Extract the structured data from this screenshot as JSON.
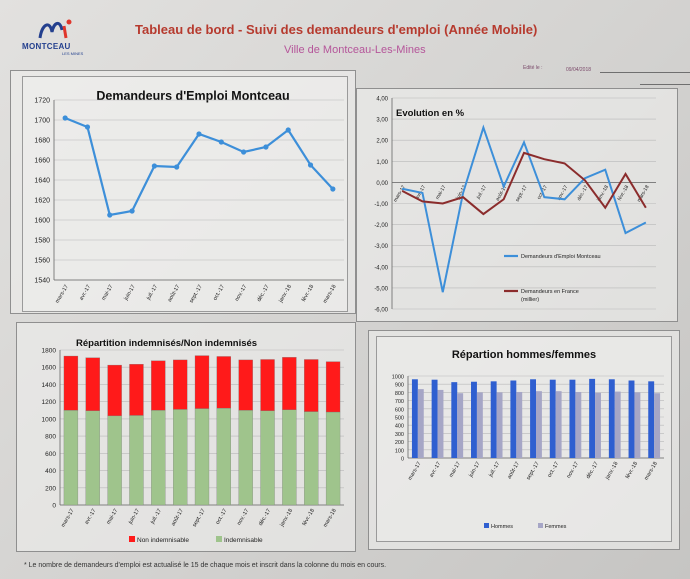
{
  "header": {
    "logo_text": "MONTCEAU",
    "logo_sub": "LES MINES",
    "title": "Tableau de bord - Suivi des demandeurs d'emploi (Année Mobile)",
    "subtitle": "Ville de Montceau-Les-Mines",
    "edition_label": "Edité le :",
    "date": "09/04/2018"
  },
  "footnote": "* Le nombre de demandeurs d'emploi est actualisé le 15 de chaque mois et inscrit dans la colonne du mois en cours.",
  "colors": {
    "line_blue": "#3d8fd9",
    "line_dark_red": "#8b2c2c",
    "bar_red": "#ff1a1a",
    "bar_green": "#9fc48c",
    "bar_blue": "#2f5fd0",
    "bar_grey": "#a6a6c6",
    "title_red": "#b63a2e",
    "subtitle_pink": "#b5569a"
  },
  "chart_data": [
    {
      "type": "line",
      "title": "Demandeurs d'Emploi Montceau",
      "categories": [
        "mars-17",
        "avr.-17",
        "mai-17",
        "juin-17",
        "juil.-17",
        "août-17",
        "sept.-17",
        "oct.-17",
        "nov.-17",
        "déc.-17",
        "janv.-18",
        "févr.-18",
        "mars-18"
      ],
      "values": [
        1702,
        1693,
        1605,
        1609,
        1654,
        1653,
        1686,
        1678,
        1668,
        1673,
        1690,
        1655,
        1631
      ],
      "ylim": [
        1540,
        1720
      ],
      "yticks": [
        "1540",
        "1560",
        "1580",
        "1600",
        "1620",
        "1640",
        "1660",
        "1680",
        "1700",
        "1720"
      ],
      "grid": true
    },
    {
      "type": "line",
      "title": "Evolution en %",
      "categories": [
        "mars-17",
        "avr.-17",
        "mai-17",
        "juin-17",
        "juil.-17",
        "août-17",
        "sept.-17",
        "oct.-17",
        "nov.-17",
        "déc.-17",
        "janv.-18",
        "févr.-18",
        "mars-18"
      ],
      "series": [
        {
          "name": "Demandeurs d'Emploi Montceau",
          "values": [
            -0.3,
            -0.5,
            -5.2,
            -0.5,
            2.6,
            -0.2,
            1.9,
            -0.7,
            -0.8,
            0.2,
            0.6,
            -2.4,
            -1.9
          ]
        },
        {
          "name": "Demandeurs en France (millier)",
          "values": [
            -0.4,
            -0.9,
            -1.0,
            -0.7,
            -1.5,
            -0.8,
            1.4,
            1.1,
            0.9,
            0.1,
            -1.2,
            0.4,
            -1.2
          ]
        }
      ],
      "ylim": [
        -6,
        4
      ],
      "yticks": [
        "-6,00",
        "-5,00",
        "-4,00",
        "-3,00",
        "-2,00",
        "-1,00",
        "0,00",
        "1,00",
        "2,00",
        "3,00",
        "4,00"
      ],
      "grid": true,
      "legend": "right"
    },
    {
      "type": "bar",
      "stacked": true,
      "title": "Répartition indemnisés/Non indemnisés",
      "categories": [
        "mars-17",
        "avr.-17",
        "mai-17",
        "juin-17",
        "juil.-17",
        "août-17",
        "sept.-17",
        "oct.-17",
        "nov.-17",
        "déc.-17",
        "janv.-18",
        "févr.-18",
        "mars-18"
      ],
      "series": [
        {
          "name": "Indemnisable",
          "values": [
            1100,
            1095,
            1035,
            1040,
            1100,
            1110,
            1120,
            1125,
            1100,
            1095,
            1105,
            1085,
            1080
          ]
        },
        {
          "name": "Non indemnisable",
          "values": [
            630,
            615,
            590,
            595,
            575,
            575,
            615,
            600,
            585,
            595,
            610,
            605,
            585
          ]
        }
      ],
      "ylim": [
        0,
        1800
      ],
      "yticks": [
        "0",
        "200",
        "400",
        "600",
        "800",
        "1000",
        "1200",
        "1400",
        "1600",
        "1800"
      ],
      "grid": true,
      "legend": "bottom"
    },
    {
      "type": "bar",
      "title": "Répartion hommes/femmes",
      "categories": [
        "mars-17",
        "avr.-17",
        "mai-17",
        "juin-17",
        "juil.-17",
        "août-17",
        "sept.-17",
        "oct.-17",
        "nov.-17",
        "déc.-17",
        "janv.-18",
        "févr.-18",
        "mars-18"
      ],
      "series": [
        {
          "name": "Hommes",
          "values": [
            960,
            955,
            925,
            930,
            935,
            945,
            960,
            955,
            955,
            965,
            960,
            945,
            935
          ]
        },
        {
          "name": "Femmes",
          "values": [
            840,
            830,
            790,
            800,
            800,
            805,
            815,
            815,
            805,
            795,
            810,
            800,
            790
          ]
        }
      ],
      "ylim": [
        0,
        1000
      ],
      "yticks": [
        "0",
        "100",
        "200",
        "300",
        "400",
        "500",
        "600",
        "700",
        "800",
        "900",
        "1000"
      ],
      "grid": true,
      "legend": "bottom"
    }
  ]
}
